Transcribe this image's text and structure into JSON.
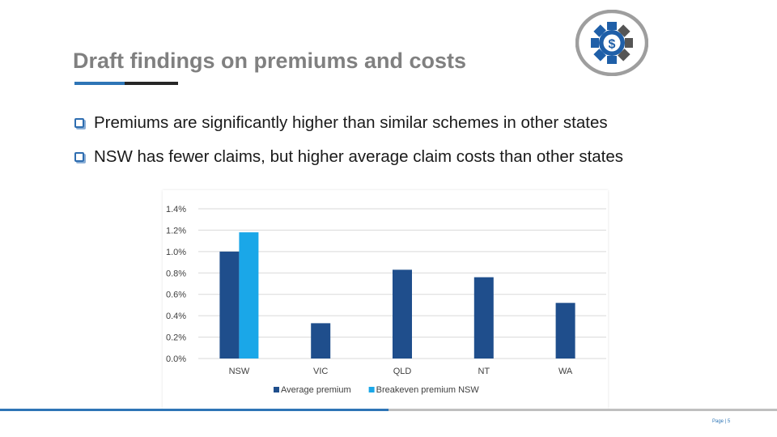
{
  "slide": {
    "title": "Draft findings on premiums and costs",
    "bullets": [
      "Premiums are significantly higher than similar schemes in other states",
      "NSW has fewer claims, but higher average claim costs than other states"
    ],
    "page_label": "Page | 5",
    "logo_icon": "gear-dollar-icon",
    "logo_symbol": "$",
    "colors": {
      "title": "#808080",
      "accent": "#2e75b6",
      "logo_blue": "#1f5fa8",
      "logo_ring": "#9e9e9e"
    }
  },
  "chart_data": {
    "type": "bar",
    "categories": [
      "NSW",
      "VIC",
      "QLD",
      "NT",
      "WA"
    ],
    "series": [
      {
        "name": "Average premium",
        "color": "#1f4e8c",
        "values": [
          1.0,
          0.33,
          0.83,
          0.76,
          0.52
        ]
      },
      {
        "name": "Breakeven premium NSW",
        "color": "#1aa7e8",
        "values": [
          1.18,
          null,
          null,
          null,
          null
        ]
      }
    ],
    "y_ticks": [
      "0.0%",
      "0.2%",
      "0.4%",
      "0.6%",
      "0.8%",
      "1.0%",
      "1.2%",
      "1.4%"
    ],
    "ylim": [
      0,
      1.4
    ],
    "grid": true,
    "legend": "bottom",
    "title": "",
    "xlabel": "",
    "ylabel": ""
  }
}
